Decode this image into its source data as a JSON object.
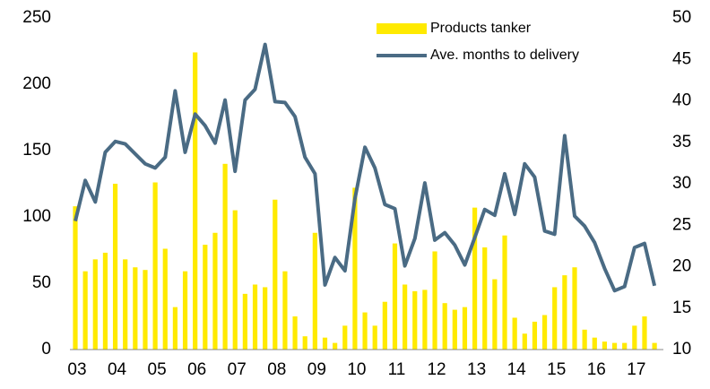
{
  "chart_data": {
    "type": "bar-line",
    "categories": [
      "03",
      null,
      null,
      null,
      "04",
      null,
      null,
      null,
      "05",
      null,
      null,
      null,
      "06",
      null,
      null,
      null,
      "07",
      null,
      null,
      null,
      "08",
      null,
      null,
      null,
      "09",
      null,
      null,
      null,
      "10",
      null,
      null,
      null,
      "11",
      null,
      null,
      null,
      "12",
      null,
      null,
      null,
      "13",
      null,
      null,
      null,
      "14",
      null,
      null,
      null,
      "15",
      null,
      null,
      null,
      "16",
      null,
      null,
      null,
      "17",
      null,
      null
    ],
    "series": [
      {
        "name": "Products tanker",
        "type": "bar",
        "axis": "y",
        "color": "#ffea00",
        "values": [
          108,
          59,
          68,
          73,
          125,
          68,
          62,
          60,
          126,
          76,
          32,
          59,
          224,
          79,
          88,
          140,
          105,
          42,
          49,
          47,
          113,
          59,
          25,
          10,
          88,
          9,
          5,
          18,
          122,
          28,
          18,
          36,
          80,
          49,
          44,
          45,
          74,
          35,
          30,
          32,
          107,
          77,
          53,
          86,
          24,
          12,
          21,
          26,
          47,
          56,
          62,
          15,
          9,
          6,
          5,
          5,
          18,
          25,
          5
        ]
      },
      {
        "name": "Ave. months to delivery",
        "type": "line",
        "axis": "y2",
        "color": "#4a6b84",
        "values": [
          25.5,
          30.4,
          27.8,
          33.8,
          35.1,
          34.8,
          33.6,
          32.4,
          31.9,
          33.2,
          41.2,
          33.8,
          38.4,
          37.0,
          34.9,
          40.1,
          31.5,
          40.1,
          41.4,
          46.8,
          39.9,
          39.8,
          38.1,
          33.2,
          31.2,
          17.8,
          21.1,
          19.5,
          28.2,
          34.4,
          31.9,
          27.5,
          27.0,
          20.1,
          23.4,
          30.1,
          23.2,
          24.1,
          22.6,
          20.2,
          23.5,
          26.9,
          26.2,
          31.2,
          26.3,
          32.4,
          30.8,
          24.3,
          23.9,
          35.8,
          26.1,
          24.9,
          22.9,
          19.8,
          17.1,
          17.6,
          22.3,
          22.8,
          17.7
        ]
      }
    ],
    "ylim": [
      0,
      250
    ],
    "yticks": [
      0,
      50,
      100,
      150,
      200,
      250
    ],
    "y2lim": [
      10,
      50
    ],
    "y2ticks": [
      10,
      15,
      20,
      25,
      30,
      35,
      40,
      45,
      50
    ],
    "grid": false,
    "legend": "top-right"
  }
}
